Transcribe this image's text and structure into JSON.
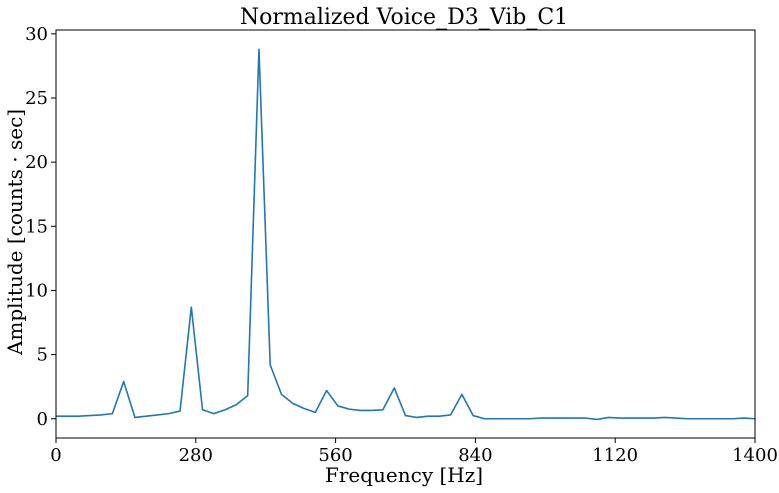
{
  "chart_data": {
    "type": "line",
    "title": "Normalized Voice_D3_Vib_C1",
    "xlabel": "Frequency [Hz]",
    "ylabel": "Amplitude [counts · sec]",
    "xlim": [
      0,
      1400
    ],
    "ylim": [
      -1.5,
      30.3
    ],
    "xticks": [
      0,
      280,
      560,
      840,
      1120,
      1400
    ],
    "xtick_labels": [
      "0",
      "280",
      "560",
      "840",
      "1120",
      "1400"
    ],
    "yticks": [
      0,
      5,
      10,
      15,
      20,
      25,
      30
    ],
    "ytick_labels": [
      "0",
      "5",
      "10",
      "15",
      "20",
      "25",
      "30"
    ],
    "grid": false,
    "line_color": "#1f77b4",
    "series": [
      {
        "x": [
          0,
          22.6,
          45.2,
          67.7,
          90.3,
          112.9,
          135.5,
          158.1,
          180.6,
          203.2,
          225.8,
          248.4,
          271.0,
          293.5,
          316.1,
          338.7,
          361.3,
          383.9,
          406.5,
          429.0,
          451.6,
          474.2,
          496.8,
          519.4,
          541.9,
          564.5,
          587.1,
          609.7,
          632.3,
          654.8,
          677.4,
          700.0,
          722.6,
          745.2,
          767.7,
          790.3,
          812.9,
          835.5,
          858.1,
          880.6,
          903.2,
          925.8,
          948.4,
          971.0,
          993.5,
          1016.1,
          1038.7,
          1061.3,
          1083.9,
          1106.5,
          1129.0,
          1151.6,
          1174.2,
          1196.8,
          1219.4,
          1241.9,
          1264.5,
          1287.1,
          1309.7,
          1332.3,
          1354.8,
          1377.4,
          1400.0
        ],
        "values": [
          0.2,
          0.2,
          0.2,
          0.25,
          0.3,
          0.4,
          2.9,
          0.1,
          0.2,
          0.3,
          0.4,
          0.6,
          8.7,
          0.7,
          0.4,
          0.7,
          1.1,
          1.8,
          28.8,
          4.2,
          1.9,
          1.2,
          0.8,
          0.5,
          2.2,
          1.0,
          0.75,
          0.65,
          0.65,
          0.7,
          2.4,
          0.25,
          0.1,
          0.2,
          0.2,
          0.3,
          1.9,
          0.25,
          0.0,
          0.0,
          0.0,
          0.0,
          0.0,
          0.05,
          0.05,
          0.05,
          0.05,
          0.05,
          -0.05,
          0.1,
          0.05,
          0.05,
          0.05,
          0.05,
          0.1,
          0.05,
          0.0,
          0.0,
          0.0,
          0.0,
          0.0,
          0.05,
          0.0
        ]
      }
    ]
  }
}
